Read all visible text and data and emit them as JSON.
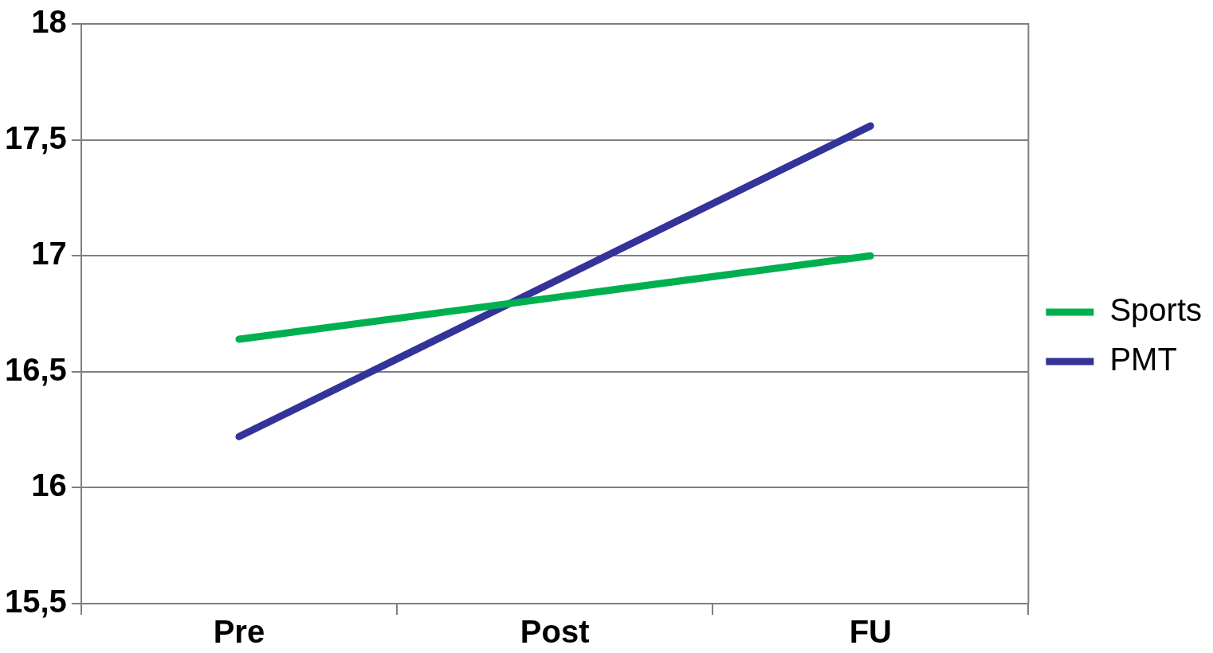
{
  "chart_data": {
    "type": "line",
    "categories": [
      "Pre",
      "Post",
      "FU"
    ],
    "series": [
      {
        "name": "Sports",
        "color": "#00b050",
        "values": [
          16.64,
          16.82,
          17.0
        ]
      },
      {
        "name": "PMT",
        "color": "#333399",
        "values": [
          16.22,
          16.89,
          17.56
        ]
      }
    ],
    "ylim": [
      15.5,
      18
    ],
    "yticks": [
      {
        "value": 15.5,
        "label": "15,5"
      },
      16,
      {
        "value": 16.5,
        "label": "16,5"
      },
      17,
      {
        "value": 17.5,
        "label": "17,5"
      },
      18
    ],
    "grid": "y",
    "legend": "right",
    "marker": "none",
    "line_style": "solid"
  }
}
